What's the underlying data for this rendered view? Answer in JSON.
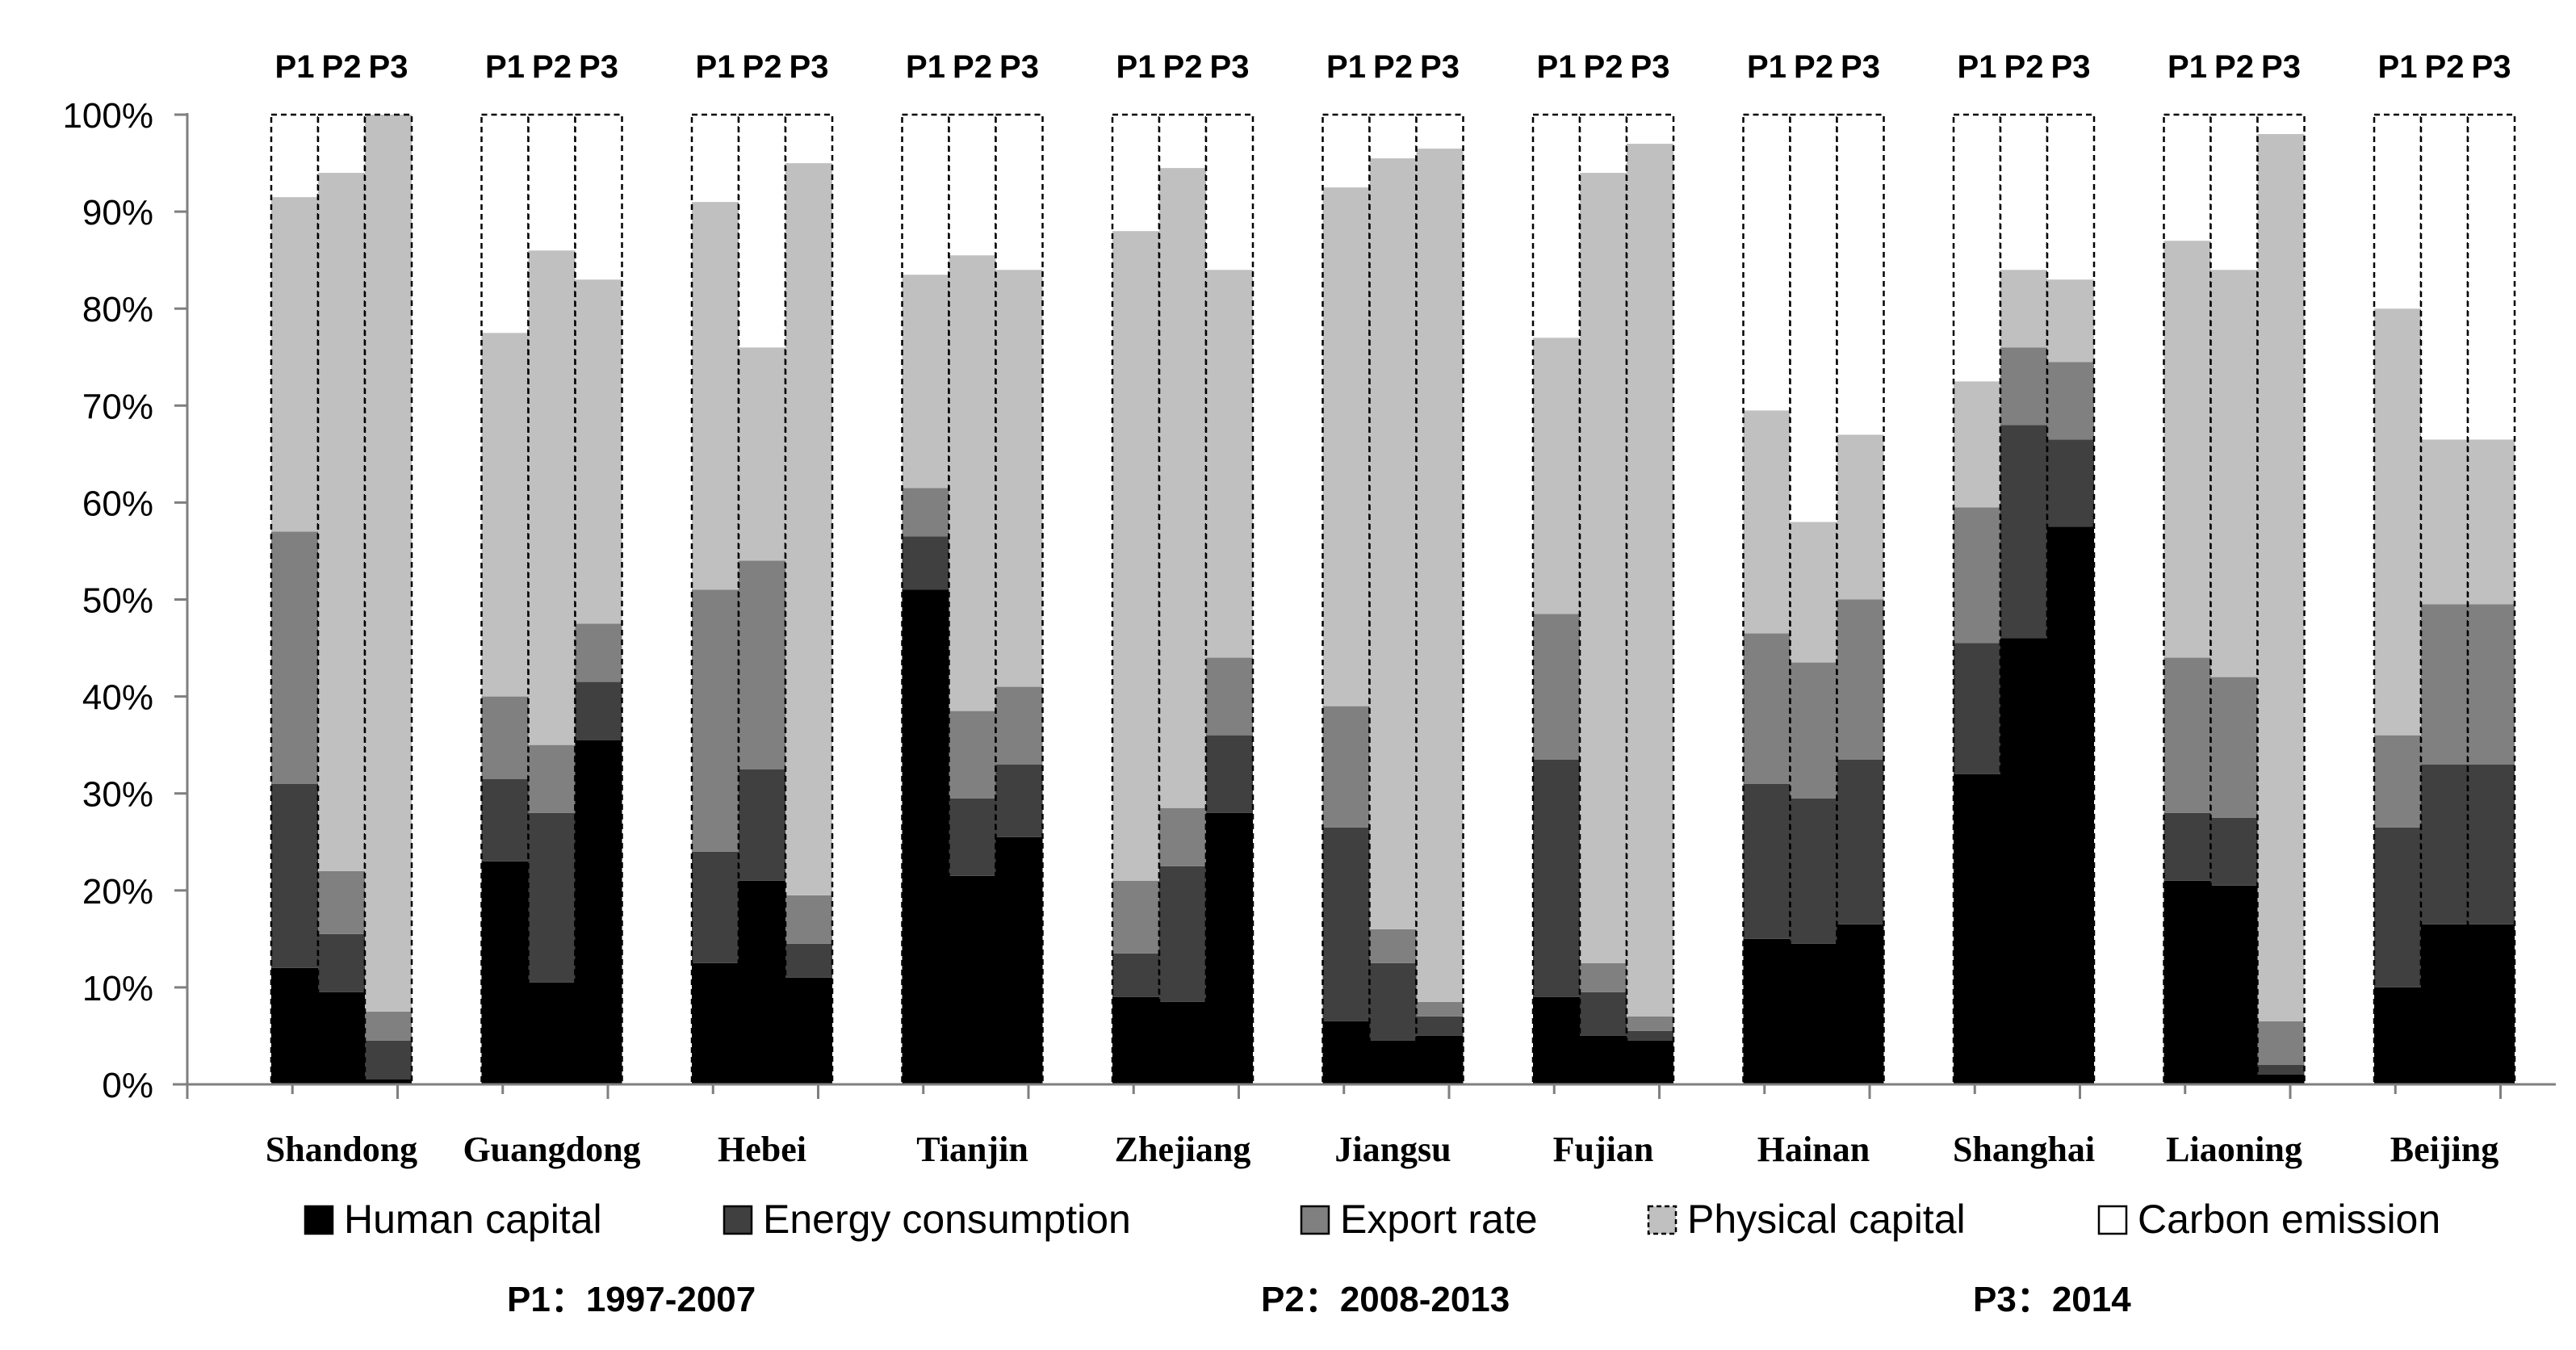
{
  "chart_data": {
    "type": "bar",
    "stacked": true,
    "percent": true,
    "categories": [
      "Shandong",
      "Guangdong",
      "Hebei",
      "Tianjin",
      "Zhejiang",
      "Jiangsu",
      "Fujian",
      "Hainan",
      "Shanghai",
      "Liaoning",
      "Beijing"
    ],
    "periods": [
      "P1",
      "P2",
      "P3"
    ],
    "y_ticks": [
      "0%",
      "10%",
      "20%",
      "30%",
      "40%",
      "50%",
      "60%",
      "70%",
      "80%",
      "90%",
      "100%"
    ],
    "ylim": [
      0,
      100
    ],
    "series": [
      {
        "name": "Human capital",
        "color": "#000000"
      },
      {
        "name": "Energy consumption",
        "color": "#404040"
      },
      {
        "name": "Export rate",
        "color": "#808080"
      },
      {
        "name": "Physical capital",
        "color": "#c0c0c0"
      },
      {
        "name": "Carbon emission",
        "color": "#ffffff"
      }
    ],
    "data": [
      [
        [
          12,
          19,
          26,
          34.5,
          8.5
        ],
        [
          9.5,
          6,
          6.5,
          72,
          6
        ],
        [
          0.5,
          4,
          3,
          92.5,
          0
        ]
      ],
      [
        [
          23,
          8.5,
          8.5,
          37.5,
          22.5
        ],
        [
          10.5,
          17.5,
          7,
          51,
          14
        ],
        [
          35.5,
          6,
          6,
          35.5,
          17
        ]
      ],
      [
        [
          12.5,
          11.5,
          27,
          40,
          9
        ],
        [
          21,
          11.5,
          21.5,
          22,
          24
        ],
        [
          11,
          3.5,
          5,
          75.5,
          5
        ]
      ],
      [
        [
          51,
          5.5,
          5,
          22,
          16.5
        ],
        [
          21.5,
          8,
          9,
          47,
          14.5
        ],
        [
          25.5,
          7.5,
          8,
          43,
          16
        ]
      ],
      [
        [
          9,
          4.5,
          7.5,
          67,
          12
        ],
        [
          8.5,
          14,
          6,
          66,
          5.5
        ],
        [
          28,
          8,
          8,
          40,
          16
        ]
      ],
      [
        [
          6.5,
          20,
          12.5,
          53.5,
          7.5
        ],
        [
          4.5,
          8,
          3.5,
          79.5,
          4.5
        ],
        [
          5,
          2,
          1.5,
          88,
          3.5
        ]
      ],
      [
        [
          9,
          24.5,
          15,
          28.5,
          23
        ],
        [
          5,
          4.5,
          3,
          81.5,
          6
        ],
        [
          4.5,
          1,
          1.5,
          90,
          3
        ]
      ],
      [
        [
          15,
          16,
          15.5,
          23,
          30.5
        ],
        [
          14.5,
          15,
          14,
          14.5,
          42
        ],
        [
          16.5,
          17,
          16.5,
          17,
          33
        ]
      ],
      [
        [
          32,
          13.5,
          14,
          13,
          27.5
        ],
        [
          46,
          22,
          8,
          8,
          16
        ],
        [
          57.5,
          9,
          8,
          8.5,
          17
        ]
      ],
      [
        [
          21,
          7,
          16,
          43,
          13
        ],
        [
          20.5,
          7,
          14.5,
          42,
          16
        ],
        [
          1,
          1,
          4.5,
          91.5,
          2
        ]
      ],
      [
        [
          10,
          16.5,
          9.5,
          44,
          20
        ],
        [
          16.5,
          16.5,
          16.5,
          17,
          33.5
        ],
        [
          16.5,
          16.5,
          16.5,
          17,
          33.5
        ]
      ]
    ],
    "notes": [
      "P1：1997-2007",
      "P2：2008-2013",
      "P3：2014"
    ]
  }
}
